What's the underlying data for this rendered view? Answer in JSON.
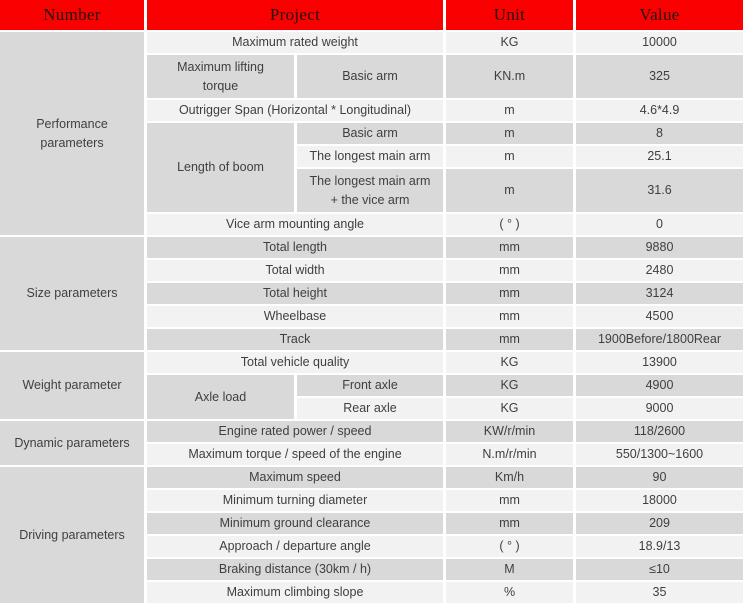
{
  "colors": {
    "header_bg": "#fb0000",
    "header_text": "#1f140d",
    "row_light": "#f2f2f2",
    "row_dark": "#d9d9d9",
    "body_text": "#3f3f3f",
    "gap": "#ffffff"
  },
  "headers": {
    "number": "Number",
    "project": "Project",
    "unit": "Unit",
    "value": "Value"
  },
  "sections": {
    "performance": "Performance parameters",
    "size": "Size parameters",
    "weight": "Weight parameter",
    "dynamic": "Dynamic parameters",
    "driving": "Driving parameters"
  },
  "rows": {
    "r1": {
      "project": "Maximum rated weight",
      "unit": "KG",
      "value": "10000"
    },
    "r2": {
      "group": "Maximum lifting\ntorque",
      "sub": "Basic arm",
      "unit": "KN.m",
      "value": "325"
    },
    "r3": {
      "project": "Outrigger Span (Horizontal * Longitudinal)",
      "unit": "m",
      "value": "4.6*4.9"
    },
    "r4": {
      "group": "Length of boom",
      "sub": "Basic arm",
      "unit": "m",
      "value": "8"
    },
    "r5": {
      "sub": "The longest main arm",
      "unit": "m",
      "value": "25.1"
    },
    "r6": {
      "sub": "The longest main arm\n+ the vice arm",
      "unit": "m",
      "value": "31.6"
    },
    "r7": {
      "project": "Vice arm mounting angle",
      "unit": "( ° )",
      "value": "0"
    },
    "r8": {
      "project": "Total length",
      "unit": "mm",
      "value": "9880"
    },
    "r9": {
      "project": "Total width",
      "unit": "mm",
      "value": "2480"
    },
    "r10": {
      "project": "Total height",
      "unit": "mm",
      "value": "3124"
    },
    "r11": {
      "project": "Wheelbase",
      "unit": "mm",
      "value": "4500"
    },
    "r12": {
      "project": "Track",
      "unit": "mm",
      "value": "1900Before/1800Rear"
    },
    "r13": {
      "project": "Total vehicle quality",
      "unit": "KG",
      "value": "13900"
    },
    "r14": {
      "group": "Axle load",
      "sub": "Front axle",
      "unit": "KG",
      "value": "4900"
    },
    "r15": {
      "sub": "Rear axle",
      "unit": "KG",
      "value": "9000"
    },
    "r16": {
      "project": "Engine rated power / speed",
      "unit": "KW/r/min",
      "value": "118/2600"
    },
    "r17": {
      "project": "Maximum torque / speed of the engine",
      "unit": "N.m/r/min",
      "value": "550/1300~1600"
    },
    "r18": {
      "project": "Maximum speed",
      "unit": "Km/h",
      "value": "90"
    },
    "r19": {
      "project": "Minimum turning diameter",
      "unit": "mm",
      "value": "18000"
    },
    "r20": {
      "project": "Minimum ground clearance",
      "unit": "mm",
      "value": "209"
    },
    "r21": {
      "project": "Approach / departure angle",
      "unit": "( ° )",
      "value": "18.9/13"
    },
    "r22": {
      "project": "Braking distance (30km / h)",
      "unit": "M",
      "value": "≤10"
    },
    "r23": {
      "project": "Maximum climbing slope",
      "unit": "%",
      "value": "35"
    }
  }
}
